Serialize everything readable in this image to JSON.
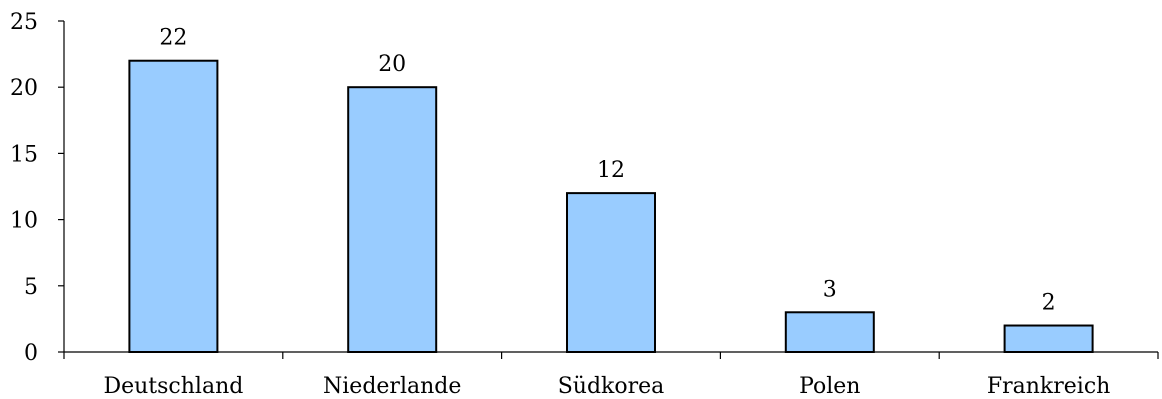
{
  "chart_data": {
    "type": "bar",
    "title": "",
    "xlabel": "",
    "ylabel": "",
    "categories": [
      "Deutschland",
      "Niederlande",
      "Südkorea",
      "Polen",
      "Frankreich"
    ],
    "values": [
      22,
      20,
      12,
      3,
      2
    ],
    "data_labels": [
      "22",
      "20",
      "12",
      "3",
      "2"
    ],
    "ylim": [
      0,
      25
    ],
    "yticks": [
      0,
      5,
      10,
      15,
      20,
      25
    ],
    "ytick_labels": [
      "0",
      "5",
      "10",
      "15",
      "20",
      "25"
    ],
    "grid": false,
    "legend": "none",
    "bar_color": "#99ccff",
    "bar_edge_color": "#000000"
  }
}
